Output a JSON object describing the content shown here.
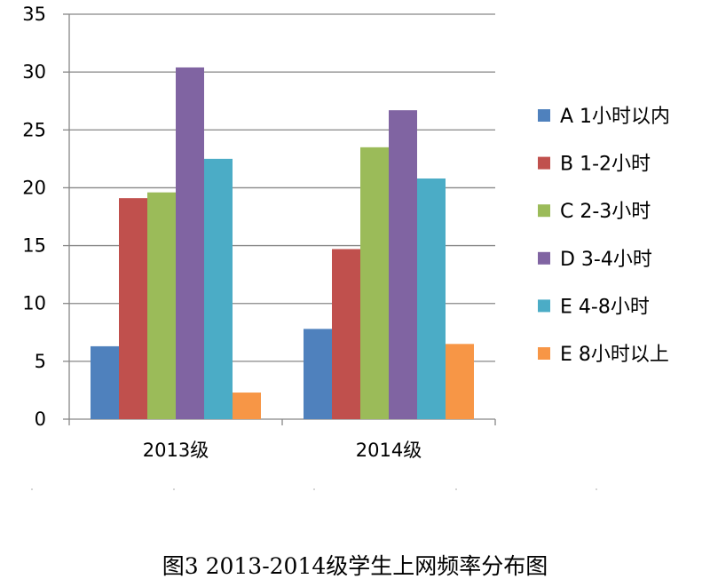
{
  "chart_data": {
    "type": "bar",
    "title": "",
    "caption": "图3 2013-2014级学生上网频率分布图",
    "categories": [
      "2013级",
      "2014级"
    ],
    "series": [
      {
        "name": "A 1小时以内",
        "color": "#4F81BD",
        "values": [
          6.3,
          7.8
        ]
      },
      {
        "name": "B 1-2小时",
        "color": "#C0504D",
        "values": [
          19.1,
          14.7
        ]
      },
      {
        "name": "C 2-3小时",
        "color": "#9BBB59",
        "values": [
          19.6,
          23.5
        ]
      },
      {
        "name": "D 3-4小时",
        "color": "#8064A2",
        "values": [
          30.4,
          26.7
        ]
      },
      {
        "name": "E 4-8小时",
        "color": "#4BACC6",
        "values": [
          22.5,
          20.8
        ]
      },
      {
        "name": "E  8小时以上",
        "color": "#F79646",
        "values": [
          2.3,
          6.5
        ]
      }
    ],
    "ylim": [
      0,
      35
    ],
    "yticks": [
      "0",
      "5",
      "10",
      "15",
      "20",
      "25",
      "30",
      "35"
    ],
    "grid": true,
    "legend_position": "right",
    "xlabel": "",
    "ylabel": ""
  }
}
